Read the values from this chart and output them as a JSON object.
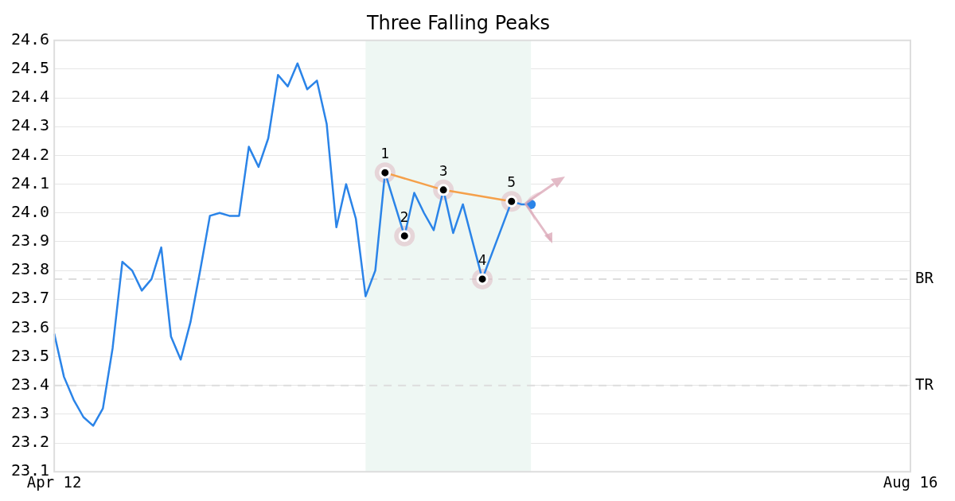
{
  "chart_data": {
    "type": "line",
    "title": "Three Falling Peaks",
    "categories": [
      "Apr 12",
      null,
      null,
      null,
      null,
      null,
      null,
      null,
      null,
      null,
      null,
      null,
      null,
      null,
      null,
      null,
      null,
      null,
      null,
      null,
      null,
      null,
      null,
      null,
      null,
      null,
      null,
      null,
      null,
      null,
      null,
      null,
      null,
      null,
      null,
      null,
      null,
      null,
      null,
      null,
      null,
      null,
      null,
      null,
      null,
      null,
      null,
      null,
      null,
      null,
      null,
      null,
      null,
      null,
      null,
      null,
      null,
      null,
      null,
      null,
      null,
      null,
      null,
      null,
      null,
      null,
      null,
      null,
      null,
      null,
      null,
      null,
      null,
      null,
      null,
      null,
      null,
      null,
      null,
      null,
      null,
      null,
      null,
      null,
      null,
      null,
      null,
      null,
      "Aug 16"
    ],
    "ylim": [
      23.1,
      24.6
    ],
    "yticks": [
      23.1,
      23.2,
      23.3,
      23.4,
      23.5,
      23.6,
      23.7,
      23.8,
      23.9,
      {
        "value": 24,
        "label": "24.0"
      },
      24.1,
      24.2,
      24.3,
      24.4,
      24.5,
      24.6
    ],
    "grid": "y",
    "legend": false,
    "series": [
      {
        "color": "#2b84e8",
        "values": [
          23.58,
          23.43,
          23.35,
          23.29,
          23.26,
          23.32,
          23.53,
          23.83,
          23.8,
          23.73,
          23.77,
          23.88,
          23.57,
          23.49,
          23.62,
          23.8,
          23.99,
          24.0,
          23.99,
          23.99,
          24.23,
          24.16,
          24.26,
          24.48,
          24.44,
          24.52,
          24.43,
          24.46,
          24.31,
          23.95,
          24.1,
          23.98,
          23.71,
          23.8,
          24.14,
          24.03,
          23.92,
          24.07,
          24.0,
          23.94,
          24.08,
          23.93,
          24.03,
          23.9,
          23.77,
          23.86,
          23.95,
          24.04,
          24.03,
          24.03,
          null,
          null,
          null,
          null,
          null,
          null,
          null,
          null,
          null,
          null,
          null,
          null,
          null,
          null,
          null,
          null,
          null,
          null,
          null,
          null,
          null,
          null,
          null,
          null,
          null,
          null,
          null,
          null,
          null,
          null,
          null,
          null,
          null,
          null,
          null,
          null,
          null,
          null,
          null
        ]
      },
      {
        "type": "line",
        "color": "#f5a04a",
        "values": [
          null,
          null,
          null,
          null,
          null,
          null,
          null,
          null,
          null,
          null,
          null,
          null,
          null,
          null,
          null,
          null,
          null,
          null,
          null,
          null,
          null,
          null,
          null,
          null,
          null,
          null,
          null,
          null,
          null,
          null,
          null,
          null,
          null,
          null,
          24.14,
          null,
          null,
          null,
          null,
          null,
          24.08,
          null,
          null,
          null,
          null,
          null,
          null,
          24.04,
          null,
          null,
          null,
          null,
          null,
          null,
          null,
          null,
          null,
          null,
          null,
          null,
          null,
          null,
          null,
          null,
          null,
          null,
          null,
          null,
          null,
          null,
          null,
          null,
          null,
          null,
          null,
          null,
          null,
          null,
          null,
          null,
          null,
          null,
          null,
          null,
          null,
          null,
          null,
          null,
          null
        ]
      },
      {
        "type": "scatter",
        "color": "#000000",
        "values": [
          null,
          null,
          null,
          null,
          null,
          null,
          null,
          null,
          null,
          null,
          null,
          null,
          null,
          null,
          null,
          null,
          null,
          null,
          null,
          null,
          null,
          null,
          null,
          null,
          null,
          null,
          null,
          null,
          null,
          null,
          null,
          null,
          null,
          null,
          24.14,
          null,
          23.92,
          null,
          null,
          null,
          24.08,
          null,
          null,
          null,
          23.77,
          null,
          null,
          24.04,
          null,
          null,
          null,
          null,
          null,
          null,
          null,
          null,
          null,
          null,
          null,
          null,
          null,
          null,
          null,
          null,
          null,
          null,
          null,
          null,
          null,
          null,
          null,
          null,
          null,
          null,
          null,
          null,
          null,
          null,
          null,
          null,
          null,
          null,
          null,
          null,
          null,
          null,
          null,
          null,
          null
        ]
      },
      {
        "type": "scatter",
        "color": "#2b84e8",
        "values": [
          null,
          null,
          null,
          null,
          null,
          null,
          null,
          null,
          null,
          null,
          null,
          null,
          null,
          null,
          null,
          null,
          null,
          null,
          null,
          null,
          null,
          null,
          null,
          null,
          null,
          null,
          null,
          null,
          null,
          null,
          null,
          null,
          null,
          null,
          null,
          null,
          null,
          null,
          null,
          null,
          null,
          null,
          null,
          null,
          null,
          null,
          null,
          null,
          null,
          24.03,
          null,
          null,
          null,
          null,
          null,
          null,
          null,
          null,
          null,
          null,
          null,
          null,
          null,
          null,
          null,
          null,
          null,
          null,
          null,
          null,
          null,
          null,
          null,
          null,
          null,
          null,
          null,
          null,
          null,
          null,
          null,
          null,
          null,
          null,
          null,
          null,
          null,
          null,
          null
        ]
      }
    ],
    "annotations": [
      {
        "text": "1",
        "y": 24.14
      },
      {
        "text": "2",
        "y": 23.92
      },
      {
        "text": "3",
        "y": 24.08
      },
      {
        "text": "4",
        "y": 23.77
      },
      {
        "text": "5",
        "y": 24.04
      }
    ],
    "ref_lines": [
      {
        "axis": "y",
        "value": 23.77,
        "label": "BR",
        "color": "#dddddd",
        "line_style": "dashed"
      },
      {
        "axis": "y",
        "value": 23.4,
        "label": "TR",
        "color": "#dddddd",
        "line_style": "dashed"
      }
    ]
  }
}
